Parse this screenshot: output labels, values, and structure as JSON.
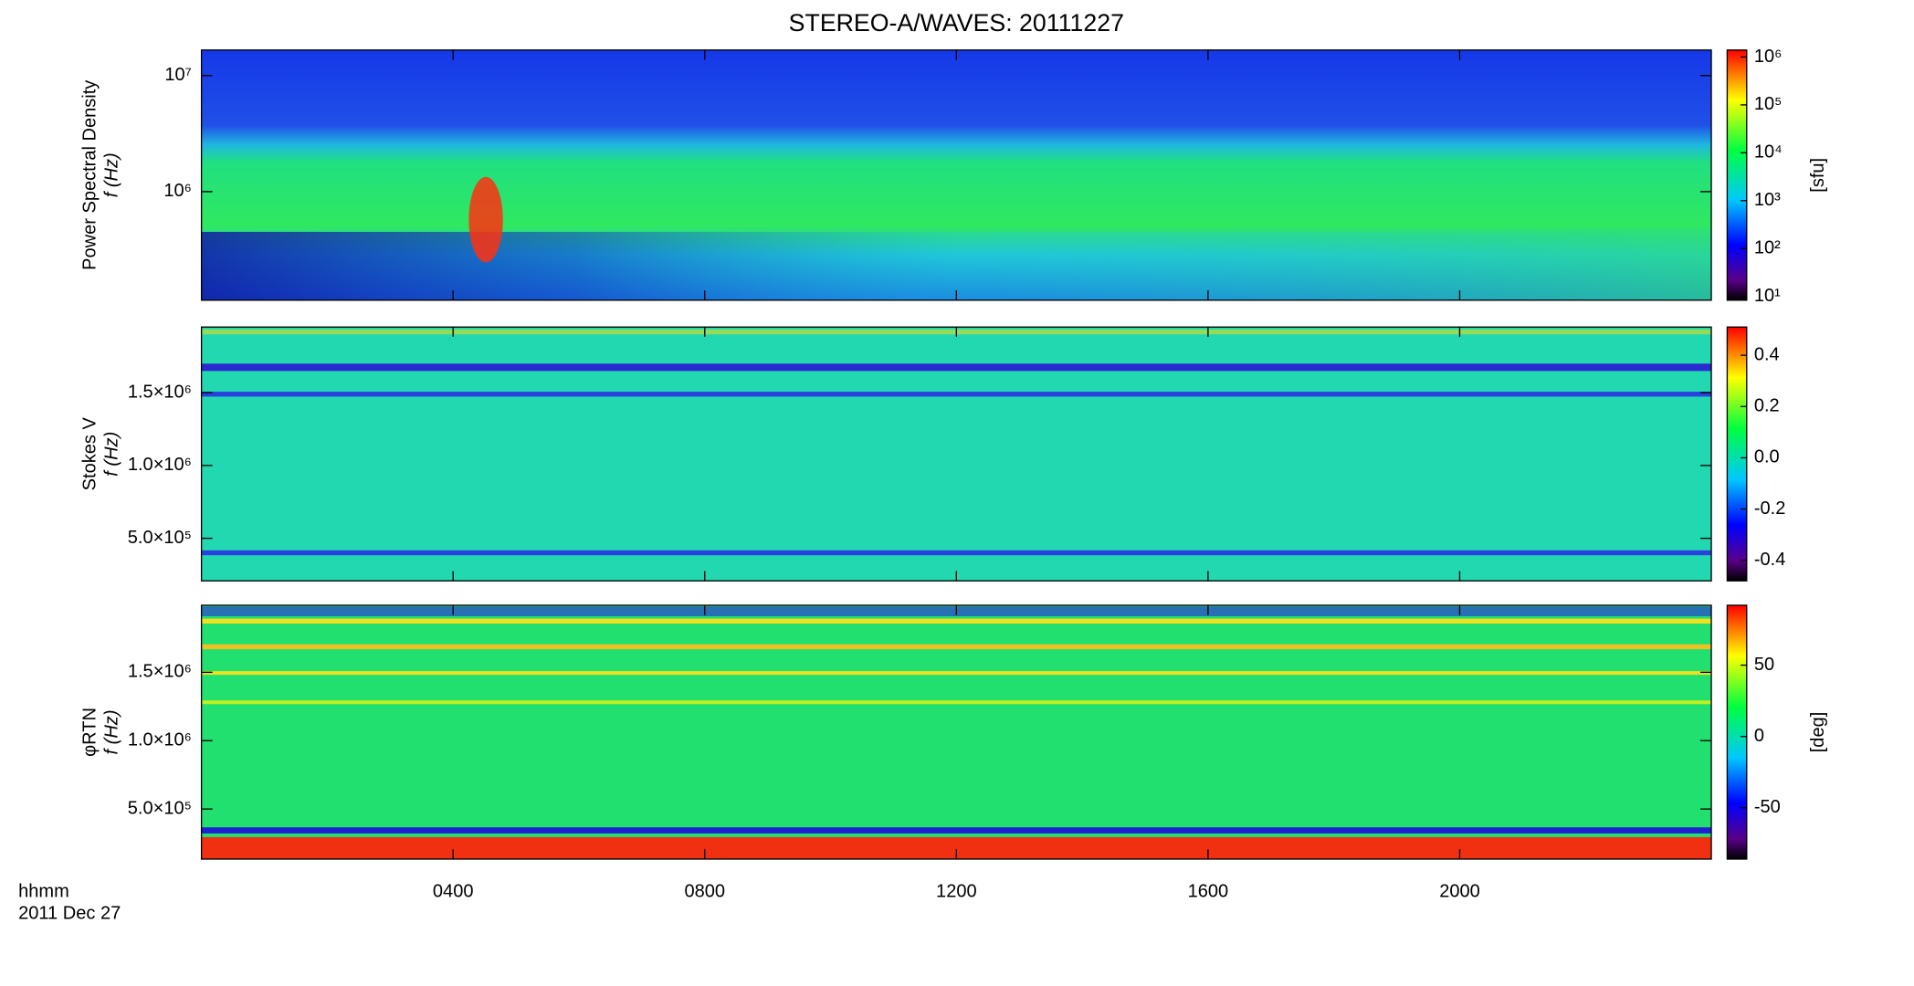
{
  "chart_data": [
    {
      "type": "spectrogram",
      "title": "STEREO-A/WAVES: 20111227",
      "ylabel": [
        "Power Spectral Density",
        "f (Hz)"
      ],
      "ylog": true,
      "ylim": [
        116000,
        16600000
      ],
      "yticks": [
        {
          "value": 1000000,
          "label": "10⁶"
        },
        {
          "value": 10000000,
          "label": "10⁷"
        }
      ],
      "colorbar": {
        "label": "[sfu]",
        "log": true,
        "lim": [
          8.3,
          1400000
        ],
        "ticks": [
          {
            "value": 10,
            "label": "10¹"
          },
          {
            "value": 100,
            "label": "10²"
          },
          {
            "value": 1000,
            "label": "10³"
          },
          {
            "value": 10000,
            "label": "10⁴"
          },
          {
            "value": 100000,
            "label": "10⁵"
          },
          {
            "value": 1000000,
            "label": "10⁶"
          }
        ]
      }
    },
    {
      "type": "spectrogram",
      "ylabel": [
        "Stokes V",
        "f (Hz)"
      ],
      "ylog": false,
      "ylim": [
        208000,
        1950000
      ],
      "yticks": [
        {
          "value": 500000,
          "label": "5.0×10⁵"
        },
        {
          "value": 1000000,
          "label": "1.0×10⁶"
        },
        {
          "value": 1500000,
          "label": "1.5×10⁶"
        }
      ],
      "colorbar": {
        "label": "",
        "log": false,
        "lim": [
          -0.48,
          0.51
        ],
        "ticks": [
          -0.4,
          -0.2,
          {
            "value": 0,
            "label": "0.0"
          },
          0.2,
          0.4
        ]
      }
    },
    {
      "type": "spectrogram",
      "ylabel": [
        "φRTN",
        "f (Hz)"
      ],
      "ylog": false,
      "ylim": [
        134000,
        1990000
      ],
      "yticks": [
        {
          "value": 500000,
          "label": "5.0×10⁵"
        },
        {
          "value": 1000000,
          "label": "1.0×10⁶"
        },
        {
          "value": 1500000,
          "label": "1.5×10⁶"
        }
      ],
      "colorbar": {
        "label": "[deg]",
        "log": false,
        "lim": [
          -86,
          92
        ],
        "ticks": [
          -50,
          0,
          50
        ]
      },
      "xlabel": [
        "hhmm",
        "2011 Dec 27"
      ],
      "xlim": [
        0,
        24
      ],
      "xticks": [
        {
          "value": 4,
          "label": "0400"
        },
        {
          "value": 8,
          "label": "0800"
        },
        {
          "value": 12,
          "label": "1200"
        },
        {
          "value": 16,
          "label": "1600"
        },
        {
          "value": 20,
          "label": "2000"
        }
      ]
    }
  ]
}
